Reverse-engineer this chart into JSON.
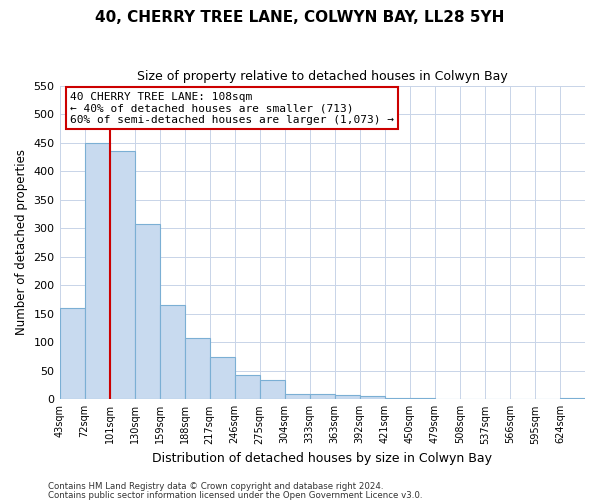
{
  "title": "40, CHERRY TREE LANE, COLWYN BAY, LL28 5YH",
  "subtitle": "Size of property relative to detached houses in Colwyn Bay",
  "xlabel": "Distribution of detached houses by size in Colwyn Bay",
  "ylabel": "Number of detached properties",
  "bin_labels": [
    "43sqm",
    "72sqm",
    "101sqm",
    "130sqm",
    "159sqm",
    "188sqm",
    "217sqm",
    "246sqm",
    "275sqm",
    "304sqm",
    "333sqm",
    "363sqm",
    "392sqm",
    "421sqm",
    "450sqm",
    "479sqm",
    "508sqm",
    "537sqm",
    "566sqm",
    "595sqm",
    "624sqm"
  ],
  "bar_values": [
    160,
    450,
    435,
    308,
    165,
    107,
    74,
    43,
    33,
    10,
    10,
    7,
    5,
    2,
    2,
    1,
    1,
    0,
    0,
    0,
    3
  ],
  "bar_fill_color": "#c8daef",
  "bar_edge_color": "#7bafd4",
  "vline_x": 2,
  "vline_color": "#cc0000",
  "ylim": [
    0,
    550
  ],
  "yticks": [
    0,
    50,
    100,
    150,
    200,
    250,
    300,
    350,
    400,
    450,
    500,
    550
  ],
  "annotation_line1": "40 CHERRY TREE LANE: 108sqm",
  "annotation_line2": "← 40% of detached houses are smaller (713)",
  "annotation_line3": "60% of semi-detached houses are larger (1,073) →",
  "footer_line1": "Contains HM Land Registry data © Crown copyright and database right 2024.",
  "footer_line2": "Contains public sector information licensed under the Open Government Licence v3.0.",
  "background_color": "#ffffff",
  "grid_color": "#c8d4e8",
  "annotation_box_edge": "#cc0000"
}
